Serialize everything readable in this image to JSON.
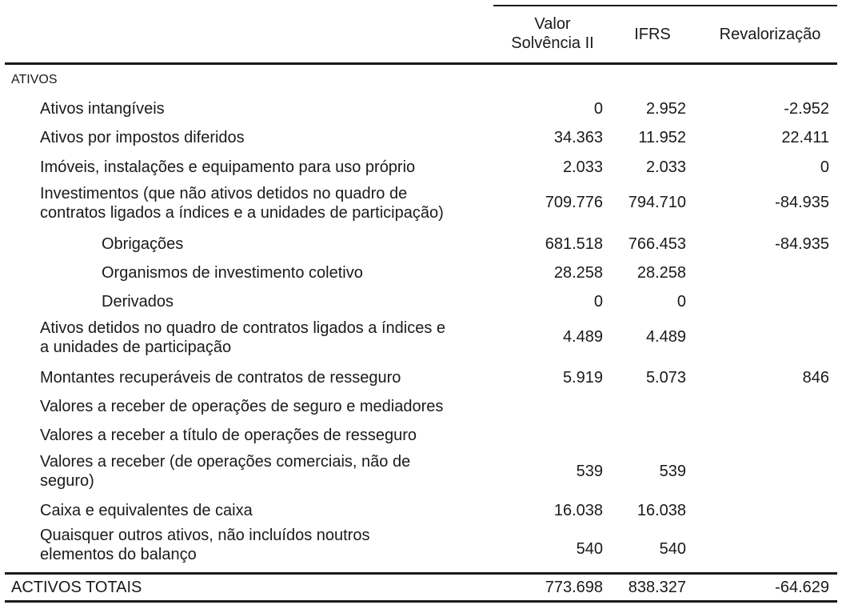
{
  "header": {
    "col1": "Valor\nSolvência II",
    "col2": "IFRS",
    "col3": "Revalorização"
  },
  "section_title": "ATIVOS",
  "rows": [
    {
      "label": "Ativos intangíveis",
      "solvencia": "0",
      "ifrs": "2.952",
      "revalorizacao": "-2.952"
    },
    {
      "label": "Ativos por impostos diferidos",
      "solvencia": "34.363",
      "ifrs": "11.952",
      "revalorizacao": "22.411"
    },
    {
      "label": "Imóveis, instalações e equipamento para uso próprio",
      "solvencia": "2.033",
      "ifrs": "2.033",
      "revalorizacao": "0"
    },
    {
      "label": "Investimentos (que não ativos detidos no quadro de\ncontratos ligados a índices e a unidades de participação)",
      "solvencia": "709.776",
      "ifrs": "794.710",
      "revalorizacao": "-84.935"
    },
    {
      "label": "Obrigações",
      "solvencia": "681.518",
      "ifrs": "766.453",
      "revalorizacao": "-84.935"
    },
    {
      "label": "Organismos de investimento coletivo",
      "solvencia": "28.258",
      "ifrs": "28.258",
      "revalorizacao": ""
    },
    {
      "label": "Derivados",
      "solvencia": "0",
      "ifrs": "0",
      "revalorizacao": ""
    },
    {
      "label": "Ativos detidos no quadro de contratos ligados a índices e\na unidades de participação",
      "solvencia": "4.489",
      "ifrs": "4.489",
      "revalorizacao": ""
    },
    {
      "label": "Montantes recuperáveis de contratos de resseguro",
      "solvencia": "5.919",
      "ifrs": "5.073",
      "revalorizacao": "846"
    },
    {
      "label": "Valores a receber de operações de seguro e mediadores",
      "solvencia": "",
      "ifrs": "",
      "revalorizacao": ""
    },
    {
      "label": "Valores a receber a título de operações de resseguro",
      "solvencia": "",
      "ifrs": "",
      "revalorizacao": ""
    },
    {
      "label": "Valores a receber (de operações comerciais, não de\nseguro)",
      "solvencia": "539",
      "ifrs": "539",
      "revalorizacao": ""
    },
    {
      "label": "Caixa e equivalentes de caixa",
      "solvencia": "16.038",
      "ifrs": "16.038",
      "revalorizacao": ""
    },
    {
      "label": "Quaisquer outros ativos, não incluídos noutros\nelementos do balanço",
      "solvencia": "540",
      "ifrs": "540",
      "revalorizacao": ""
    }
  ],
  "total": {
    "label": "ACTIVOS TOTAIS",
    "solvencia": "773.698",
    "ifrs": "838.327",
    "revalorizacao": "-64.629"
  }
}
